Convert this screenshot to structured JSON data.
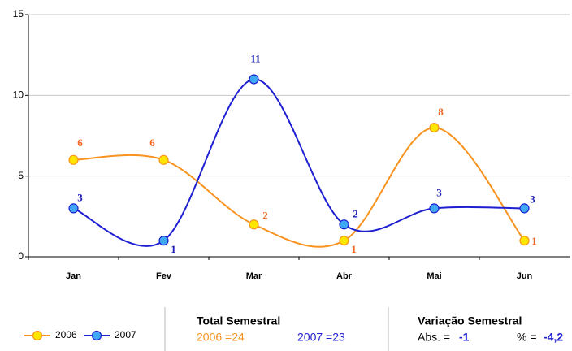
{
  "chart_data": {
    "type": "line",
    "categories": [
      "Jan",
      "Fev",
      "Mar",
      "Abr",
      "Mai",
      "Jun"
    ],
    "series": [
      {
        "name": "2006",
        "color": "#f7931e",
        "marker_color": "#ffe600",
        "label_color": "#f26522",
        "values": [
          6,
          6,
          2,
          1,
          8,
          1
        ]
      },
      {
        "name": "2007",
        "color": "#1e1ed2",
        "marker_color": "#3fa9f5",
        "label_color": "#1a1ab4",
        "values": [
          3,
          1,
          11,
          2,
          3,
          3
        ]
      }
    ],
    "ylim": [
      0,
      15
    ],
    "yticks": [
      0,
      5,
      10,
      15
    ],
    "grid": true,
    "legend": "bottom-left"
  },
  "summary": {
    "title": "Total Semestral",
    "items": [
      "2006 =24",
      "2007 =23"
    ]
  },
  "variation": {
    "title": "Variação Semestral",
    "abs_label": "Abs. =",
    "abs_value": "-1",
    "pct_label": "% =",
    "pct_value": "-4,2"
  }
}
